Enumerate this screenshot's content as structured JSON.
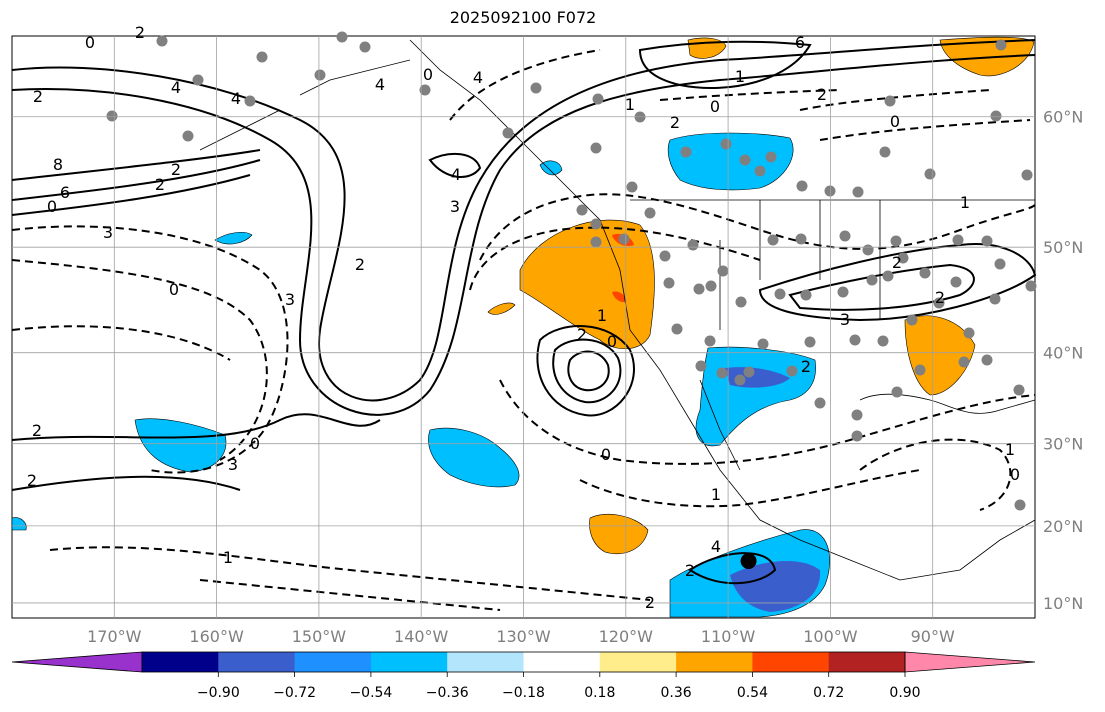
{
  "title": "2025092100 F072",
  "map": {
    "projection": "mercator",
    "lon_range": [
      -180,
      -80
    ],
    "lat_range": [
      8,
      65
    ],
    "lon_ticks": [
      {
        "lon": -170,
        "label": "170°W"
      },
      {
        "lon": -160,
        "label": "160°W"
      },
      {
        "lon": -150,
        "label": "150°W"
      },
      {
        "lon": -140,
        "label": "140°W"
      },
      {
        "lon": -130,
        "label": "130°W"
      },
      {
        "lon": -120,
        "label": "120°W"
      },
      {
        "lon": -110,
        "label": "110°W"
      },
      {
        "lon": -100,
        "label": "100°W"
      },
      {
        "lon": -90,
        "label": "90°W"
      }
    ],
    "lat_ticks": [
      {
        "lat": 60,
        "label": "60°N"
      },
      {
        "lat": 50,
        "label": "50°N"
      },
      {
        "lat": 40,
        "label": "40°N"
      },
      {
        "lat": 30,
        "label": "30°N"
      },
      {
        "lat": 20,
        "label": "20°N"
      },
      {
        "lat": 10,
        "label": "10°N"
      }
    ],
    "grid": true,
    "contour_labels": [
      "0",
      "2",
      "2",
      "4",
      "8",
      "4",
      "6",
      "2",
      "0",
      "2",
      "3",
      "3",
      "4",
      "2",
      "3",
      "4",
      "0",
      "4",
      "1",
      "2",
      "6",
      "0",
      "1",
      "2",
      "0",
      "1",
      "2",
      "2",
      "3",
      "2",
      "2",
      "0",
      "1",
      "0",
      "1",
      "4",
      "2",
      "2",
      "1",
      "0",
      "2",
      "2",
      "3",
      "0",
      "1",
      "0"
    ],
    "marker": {
      "lon": -108,
      "lat": 15.5,
      "label": ""
    }
  },
  "colorbar": {
    "colors": [
      "#9932cc",
      "#00008b",
      "#3a5fcd",
      "#1e90ff",
      "#00bfff",
      "#b3e5fc",
      "#ffffff",
      "#ffec8b",
      "#ffa500",
      "#ff4500",
      "#b22222",
      "#ff88aa"
    ],
    "tick_labels": [
      "−0.90",
      "−0.72",
      "−0.54",
      "−0.36",
      "−0.18",
      "0.18",
      "0.36",
      "0.54",
      "0.72",
      "0.90"
    ]
  }
}
